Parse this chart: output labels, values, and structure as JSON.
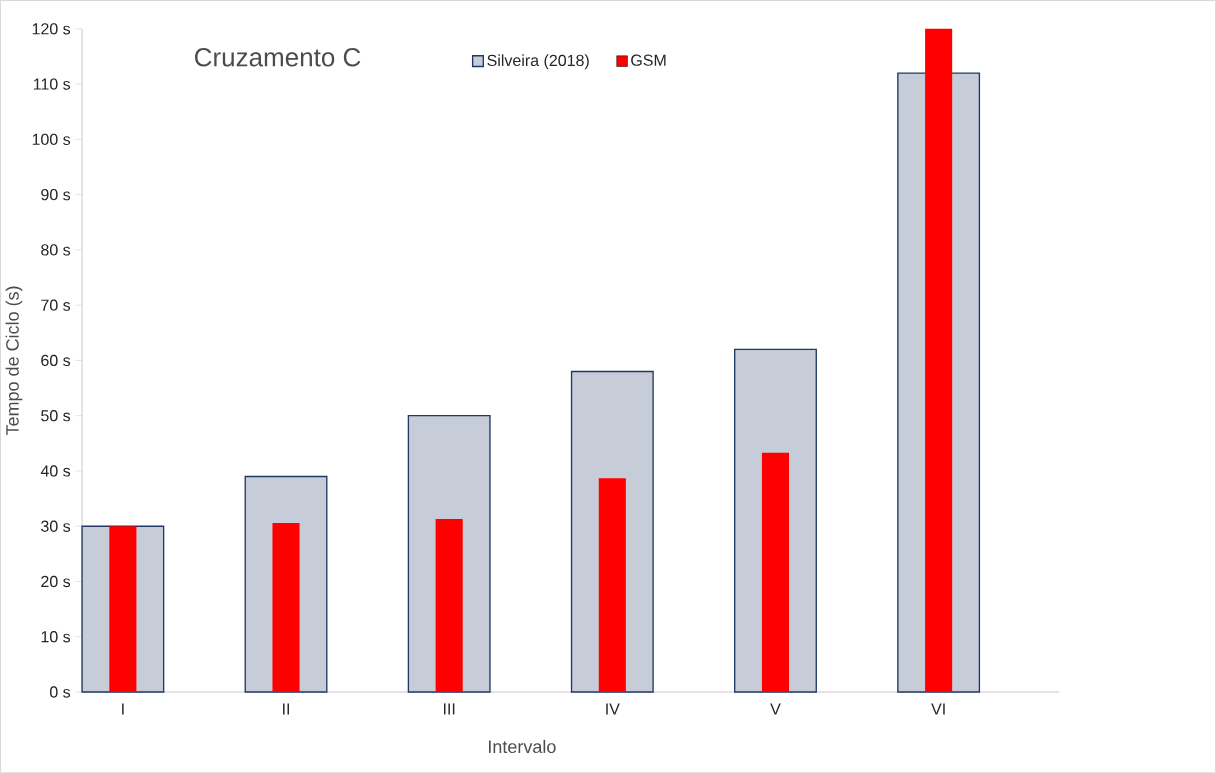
{
  "chart_data": {
    "type": "bar",
    "title": "Cruzamento C",
    "xlabel": "Intervalo",
    "ylabel": "Tempo de Ciclo (s)",
    "categories": [
      "I",
      "II",
      "III",
      "IV",
      "V",
      "VI"
    ],
    "series": [
      {
        "name": "Silveira (2018)",
        "color": "#1f3864",
        "values": [
          30,
          39,
          50,
          58,
          62,
          112
        ]
      },
      {
        "name": "GSM",
        "color": "#ff0000",
        "values": [
          30,
          30.6,
          31.3,
          38.7,
          43.3,
          120
        ]
      }
    ],
    "ylim": [
      0,
      120
    ],
    "yticks": [
      {
        "value": 0,
        "label": "0 s"
      },
      {
        "value": 10,
        "label": "10 s"
      },
      {
        "value": 20,
        "label": "20 s"
      },
      {
        "value": 30,
        "label": "30 s"
      },
      {
        "value": 40,
        "label": "40 s"
      },
      {
        "value": 50,
        "label": "50 s"
      },
      {
        "value": 60,
        "label": "60 s"
      },
      {
        "value": 70,
        "label": "70 s"
      },
      {
        "value": 80,
        "label": "80 s"
      },
      {
        "value": 90,
        "label": "90 s"
      },
      {
        "value": 100,
        "label": "100 s"
      },
      {
        "value": 110,
        "label": "110 s"
      },
      {
        "value": 120,
        "label": "120 s"
      }
    ],
    "grid": false,
    "legend": "top"
  }
}
